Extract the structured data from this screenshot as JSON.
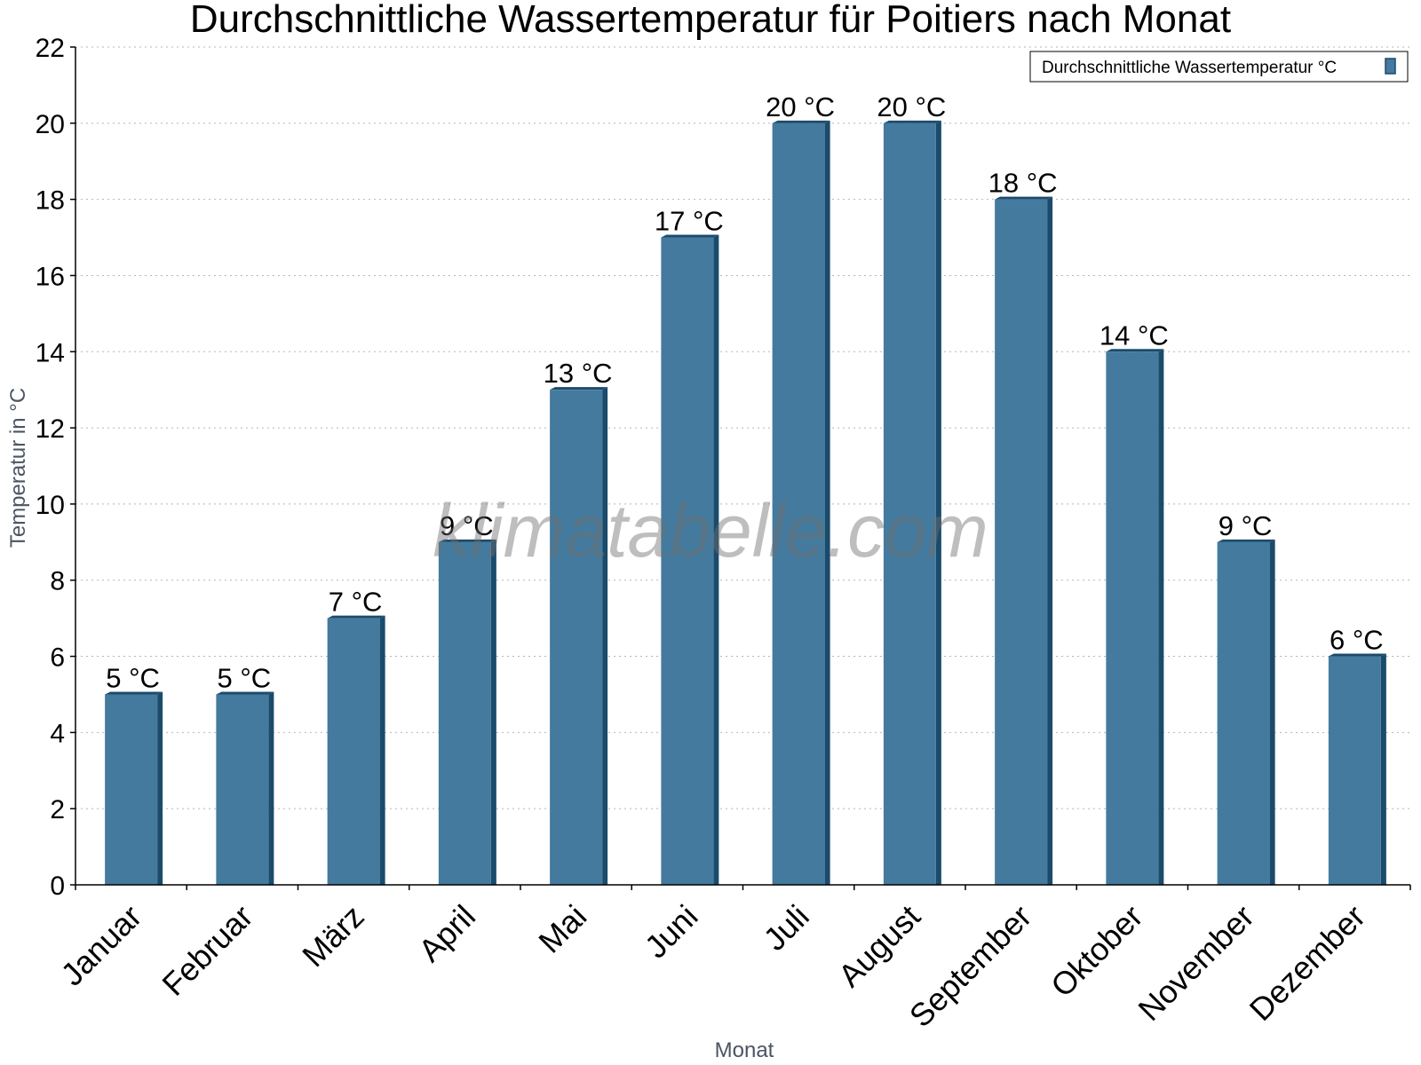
{
  "chart_data": {
    "type": "bar",
    "title": "Durchschnittliche Wassertemperatur für Poitiers nach Monat",
    "xlabel": "Monat",
    "ylabel": "Temperatur in °C",
    "categories": [
      "Januar",
      "Februar",
      "März",
      "April",
      "Mai",
      "Juni",
      "Juli",
      "August",
      "September",
      "Oktober",
      "November",
      "Dezember"
    ],
    "series": [
      {
        "name": "Durchschnittliche Wassertemperatur °C",
        "values": [
          5,
          5,
          7,
          9,
          13,
          17,
          20,
          20,
          18,
          14,
          9,
          6
        ],
        "labels": [
          "5 °C",
          "5 °C",
          "7 °C",
          "9 °C",
          "13 °C",
          "17 °C",
          "20 °C",
          "20 °C",
          "18 °C",
          "14 °C",
          "9 °C",
          "6 °C"
        ]
      }
    ],
    "ylim": [
      0,
      22
    ],
    "yticks": [
      0,
      2,
      4,
      6,
      8,
      10,
      12,
      14,
      16,
      18,
      20,
      22
    ],
    "grid": true,
    "legend_position": "top-right",
    "colors": {
      "bar": "#447a9e",
      "bar_side": "#1b4b6b",
      "grid": "#b5b5b5"
    }
  },
  "watermark": "klimatabelle.com"
}
